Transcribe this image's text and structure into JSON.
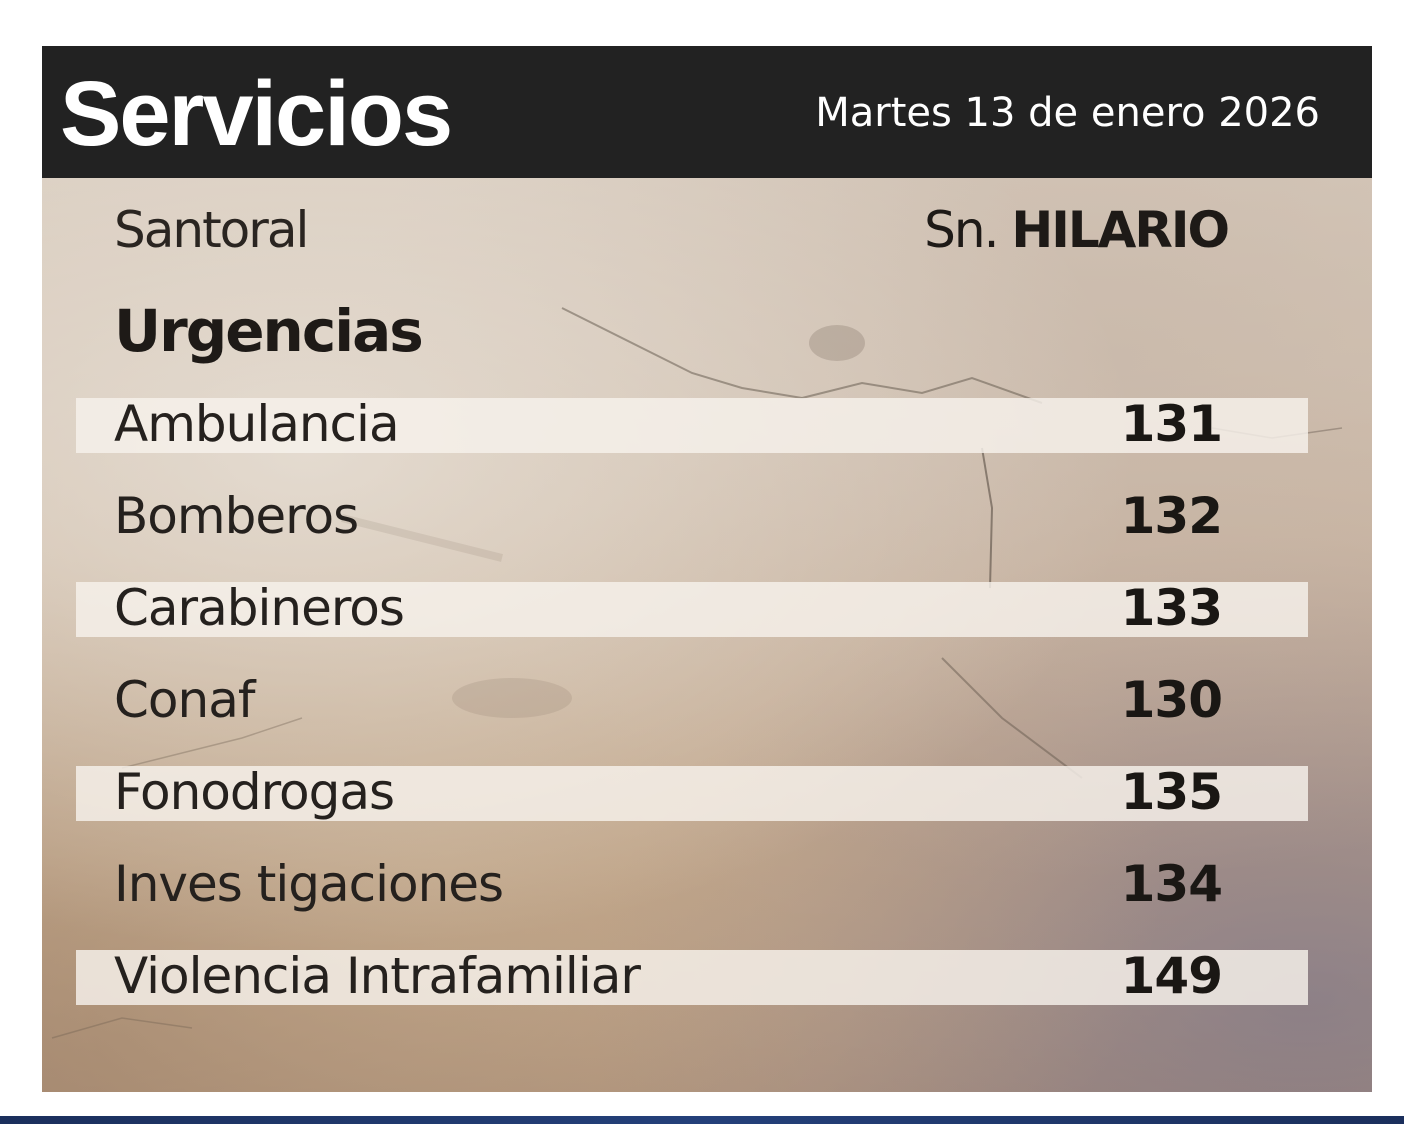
{
  "header": {
    "title": "Servicios",
    "date": "Martes 13 de enero 2026"
  },
  "santoral": {
    "label": "Santoral",
    "prefix": "Sn.",
    "name": "HILARIO"
  },
  "urgencias": {
    "title": "Urgencias",
    "items": [
      {
        "label": "Ambulancia",
        "number": "131"
      },
      {
        "label": "Bomberos",
        "number": "132"
      },
      {
        "label": "Carabineros",
        "number": "133"
      },
      {
        "label": "Conaf",
        "number": "130"
      },
      {
        "label": "Fonodrogas",
        "number": "135"
      },
      {
        "label": "Inves tigaciones",
        "number": "134"
      },
      {
        "label": "Violencia Intrafamiliar",
        "number": "149"
      }
    ]
  },
  "colors": {
    "header_bg": "#222222",
    "text_dark": "#1e1a17",
    "stripe": "#f6f2ec",
    "bottom_strip": "#1b2f5c"
  }
}
